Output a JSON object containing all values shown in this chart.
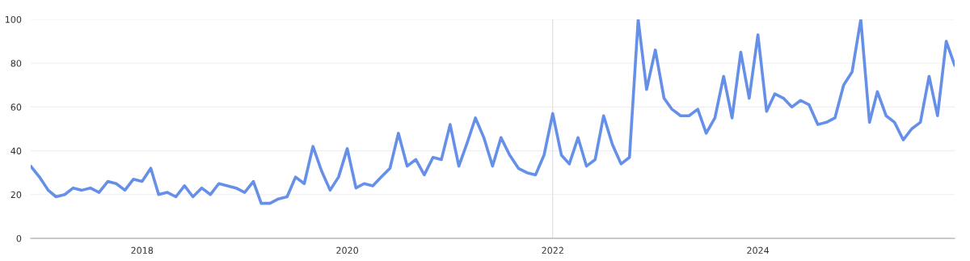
{
  "chart_data": {
    "type": "line",
    "x": [
      "2016-12",
      "2017-01",
      "2017-02",
      "2017-03",
      "2017-04",
      "2017-05",
      "2017-06",
      "2017-07",
      "2017-08",
      "2017-09",
      "2017-10",
      "2017-11",
      "2017-12",
      "2018-01",
      "2018-02",
      "2018-03",
      "2018-04",
      "2018-05",
      "2018-06",
      "2018-07",
      "2018-08",
      "2018-09",
      "2018-10",
      "2018-11",
      "2018-12",
      "2019-01",
      "2019-02",
      "2019-03",
      "2019-04",
      "2019-05",
      "2019-06",
      "2019-07",
      "2019-08",
      "2019-09",
      "2019-10",
      "2019-11",
      "2019-12",
      "2020-01",
      "2020-02",
      "2020-03",
      "2020-04",
      "2020-05",
      "2020-06",
      "2020-07",
      "2020-08",
      "2020-09",
      "2020-10",
      "2020-11",
      "2020-12",
      "2021-01",
      "2021-02",
      "2021-03",
      "2021-04",
      "2021-05",
      "2021-06",
      "2021-07",
      "2021-08",
      "2021-09",
      "2021-10",
      "2021-11",
      "2021-12",
      "2022-01",
      "2022-02",
      "2022-03",
      "2022-04",
      "2022-05",
      "2022-06",
      "2022-07",
      "2022-08",
      "2022-09",
      "2022-10",
      "2022-11",
      "2022-12",
      "2023-01",
      "2023-02",
      "2023-03",
      "2023-04",
      "2023-05",
      "2023-06",
      "2023-07",
      "2023-08",
      "2023-09",
      "2023-10",
      "2023-11",
      "2023-12",
      "2024-01",
      "2024-02",
      "2024-03",
      "2024-04",
      "2024-05",
      "2024-06",
      "2024-07",
      "2024-08",
      "2024-09",
      "2024-10",
      "2024-11",
      "2024-12",
      "2025-01",
      "2025-02",
      "2025-03",
      "2025-04",
      "2025-05",
      "2025-06",
      "2025-07",
      "2025-08",
      "2025-09",
      "2025-10",
      "2025-11",
      "2025-12"
    ],
    "series": [
      {
        "color": "#6690e8",
        "values": [
          33,
          28,
          22,
          19,
          20,
          23,
          22,
          23,
          21,
          26,
          25,
          22,
          27,
          26,
          32,
          20,
          21,
          19,
          24,
          19,
          23,
          20,
          25,
          24,
          23,
          21,
          26,
          16,
          16,
          18,
          19,
          28,
          25,
          42,
          31,
          22,
          28,
          41,
          23,
          25,
          24,
          28,
          32,
          48,
          33,
          36,
          29,
          37,
          36,
          52,
          33,
          43,
          55,
          46,
          33,
          46,
          38,
          32,
          30,
          29,
          38,
          57,
          38,
          34,
          46,
          33,
          36,
          56,
          43,
          34,
          37,
          100,
          68,
          86,
          64,
          59,
          56,
          56,
          59,
          48,
          55,
          74,
          55,
          85,
          64,
          93,
          58,
          66,
          64,
          60,
          63,
          61,
          52,
          53,
          55,
          70,
          76,
          100,
          53,
          67,
          56,
          53,
          45,
          50,
          53,
          74,
          56,
          90,
          79
        ]
      }
    ],
    "xlim": [
      "2016-12",
      "2025-12"
    ],
    "xticks": [
      {
        "value": "2018-01",
        "label": "2018"
      },
      {
        "value": "2020-01",
        "label": "2020"
      },
      {
        "value": "2022-01",
        "label": "2022"
      },
      {
        "value": "2024-01",
        "label": "2024"
      }
    ],
    "ylim": [
      0,
      100
    ],
    "yticks": [
      0,
      20,
      40,
      60,
      80,
      100
    ],
    "grid": "y",
    "legend": false,
    "marker": "none",
    "line_style": "solid",
    "ref_lines": [
      {
        "axis": "x",
        "value": "2022-01",
        "color": "#dddddd"
      }
    ]
  }
}
